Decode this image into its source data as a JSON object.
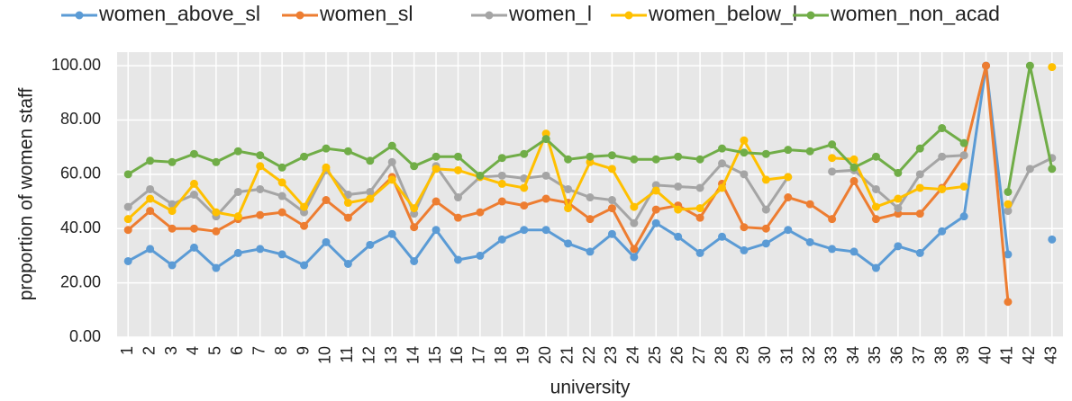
{
  "chart_data": {
    "type": "line",
    "xlabel": "university",
    "ylabel": "proportion of women staff",
    "categories": [
      "1",
      "2",
      "3",
      "4",
      "5",
      "6",
      "7",
      "8",
      "9",
      "10",
      "11",
      "12",
      "13",
      "14",
      "15",
      "16",
      "17",
      "18",
      "19",
      "20",
      "21",
      "22",
      "23",
      "24",
      "25",
      "26",
      "27",
      "28",
      "29",
      "30",
      "31",
      "32",
      "33",
      "34",
      "35",
      "36",
      "37",
      "38",
      "39",
      "40",
      "41",
      "42",
      "43"
    ],
    "series": [
      {
        "name": "women_above_sl",
        "color": "#5b9bd5",
        "values": [
          28,
          32.5,
          26.5,
          33,
          25.5,
          31,
          32.5,
          30.5,
          26.5,
          35,
          27,
          34,
          38,
          28,
          39.5,
          28.5,
          30,
          36,
          39.5,
          39.5,
          34.5,
          31.5,
          38,
          29.5,
          42,
          37,
          31,
          37,
          32,
          34.5,
          39.5,
          35,
          32.5,
          31.5,
          25.5,
          33.5,
          31,
          39,
          44.5,
          100,
          30.5,
          null,
          36
        ]
      },
      {
        "name": "women_sl",
        "color": "#ed7d31",
        "values": [
          39.5,
          46.5,
          40,
          40,
          39,
          43.5,
          45,
          46,
          41,
          50.5,
          44,
          51,
          59,
          40.5,
          50,
          44,
          46,
          50,
          48.5,
          51,
          49.5,
          43.5,
          47.5,
          32.5,
          47,
          48.5,
          44,
          56.5,
          40.5,
          40,
          51.5,
          49,
          43.5,
          57.5,
          43.5,
          45.5,
          45.5,
          55,
          67,
          100,
          13,
          null,
          null
        ]
      },
      {
        "name": "women_l",
        "color": "#a5a5a5",
        "values": [
          48,
          54.5,
          49,
          52.5,
          44.5,
          53.5,
          54.5,
          52,
          46,
          61.5,
          52.5,
          53.5,
          64.5,
          45.5,
          63,
          51.5,
          59,
          59.5,
          58.5,
          59.5,
          54.5,
          51.5,
          50.5,
          42,
          56,
          55.5,
          55,
          64,
          60,
          47,
          59,
          null,
          61,
          61.5,
          54.5,
          47.5,
          60,
          66.5,
          67,
          null,
          46.5,
          62,
          66
        ]
      },
      {
        "name": "women_below_l",
        "color": "#ffc000",
        "values": [
          43.5,
          51,
          46.5,
          56.5,
          46,
          44.5,
          63,
          57,
          48,
          62.5,
          49.5,
          51,
          58,
          47.5,
          62,
          61.5,
          59,
          56.5,
          55,
          75,
          47.5,
          64.5,
          62,
          48,
          54,
          47,
          47.5,
          55,
          72.5,
          58,
          59,
          null,
          66,
          65.5,
          48,
          51,
          55,
          54.5,
          55.5,
          null,
          49,
          null,
          99.5
        ]
      },
      {
        "name": "women_non_acad",
        "color": "#70ad47",
        "values": [
          60,
          65,
          64.5,
          67.5,
          64.5,
          68.5,
          67,
          62.5,
          66.5,
          69.5,
          68.5,
          65,
          70.5,
          63,
          66.5,
          66.5,
          59.5,
          66,
          67.5,
          73,
          65.5,
          66.5,
          67,
          65.5,
          65.5,
          66.5,
          65.5,
          69.5,
          68,
          67.5,
          69,
          68.5,
          71,
          62.5,
          66.5,
          60.5,
          69.5,
          77,
          71.5,
          null,
          53.5,
          100,
          62
        ]
      }
    ],
    "ylim": [
      0,
      105
    ],
    "yticks": [
      {
        "value": 0,
        "label": "0.00"
      },
      {
        "value": 20,
        "label": "20.00"
      },
      {
        "value": 40,
        "label": "40.00"
      },
      {
        "value": 60,
        "label": "60.00"
      },
      {
        "value": 80,
        "label": "80.00"
      },
      {
        "value": 100,
        "label": "100.00"
      }
    ],
    "grid": true,
    "legend": "top"
  }
}
